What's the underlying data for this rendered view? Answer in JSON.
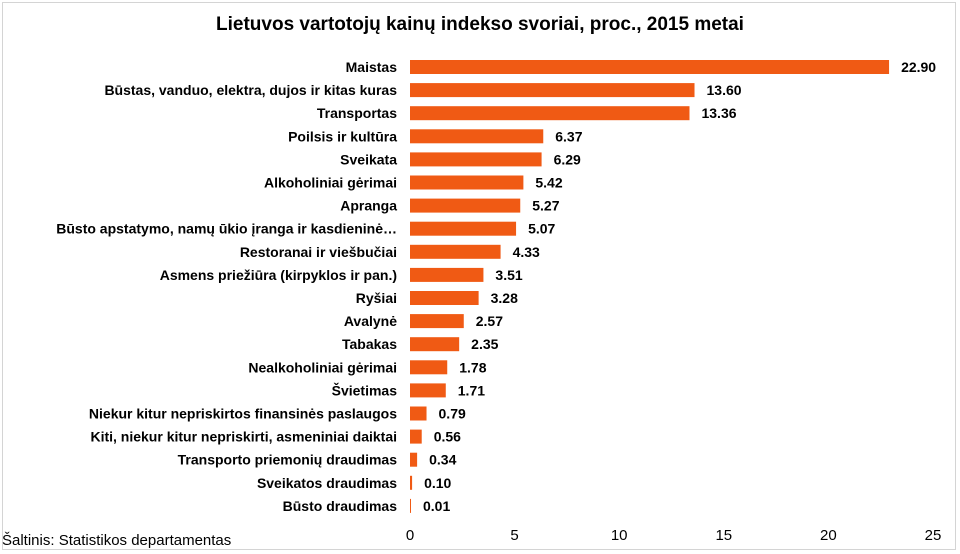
{
  "chart_data": {
    "type": "bar",
    "orientation": "horizontal",
    "title": "Lietuvos vartotojų kainų indekso svoriai, proc., 2015 metai",
    "categories": [
      "Maistas",
      "Būstas, vanduo, elektra, dujos ir kitas kuras",
      "Transportas",
      "Poilsis ir kultūra",
      "Sveikata",
      "Alkoholiniai gėrimai",
      "Apranga",
      "Būsto apstatymo, namų ūkio įranga ir kasdieninė…",
      "Restoranai ir viešbučiai",
      "Asmens priežiūra (kirpyklos ir pan.)",
      "Ryšiai",
      "Avalynė",
      "Tabakas",
      "Nealkoholiniai gėrimai",
      "Švietimas",
      "Niekur kitur nepriskirtos finansinės paslaugos",
      "Kiti, niekur kitur nepriskirti, asmeniniai daiktai",
      "Transporto priemonių draudimas",
      "Sveikatos draudimas",
      "Būsto draudimas"
    ],
    "values": [
      22.9,
      13.6,
      13.36,
      6.37,
      6.29,
      5.42,
      5.27,
      5.07,
      4.33,
      3.51,
      3.28,
      2.57,
      2.35,
      1.78,
      1.71,
      0.79,
      0.56,
      0.34,
      0.1,
      0.01
    ],
    "value_labels": [
      "22.90",
      "13.60",
      "13.36",
      "6.37",
      "6.29",
      "5.42",
      "5.27",
      "5.07",
      "4.33",
      "3.51",
      "3.28",
      "2.57",
      "2.35",
      "1.78",
      "1.71",
      "0.79",
      "0.56",
      "0.34",
      "0.10",
      "0.01"
    ],
    "xlim": [
      0,
      25
    ],
    "xticks": [
      0,
      5,
      10,
      15,
      20,
      25
    ],
    "xlabel": "",
    "ylabel": "",
    "grid": false,
    "legend": "none",
    "bar_color": "#f05a14"
  },
  "source": "Šaltinis: Statistikos departamentas"
}
